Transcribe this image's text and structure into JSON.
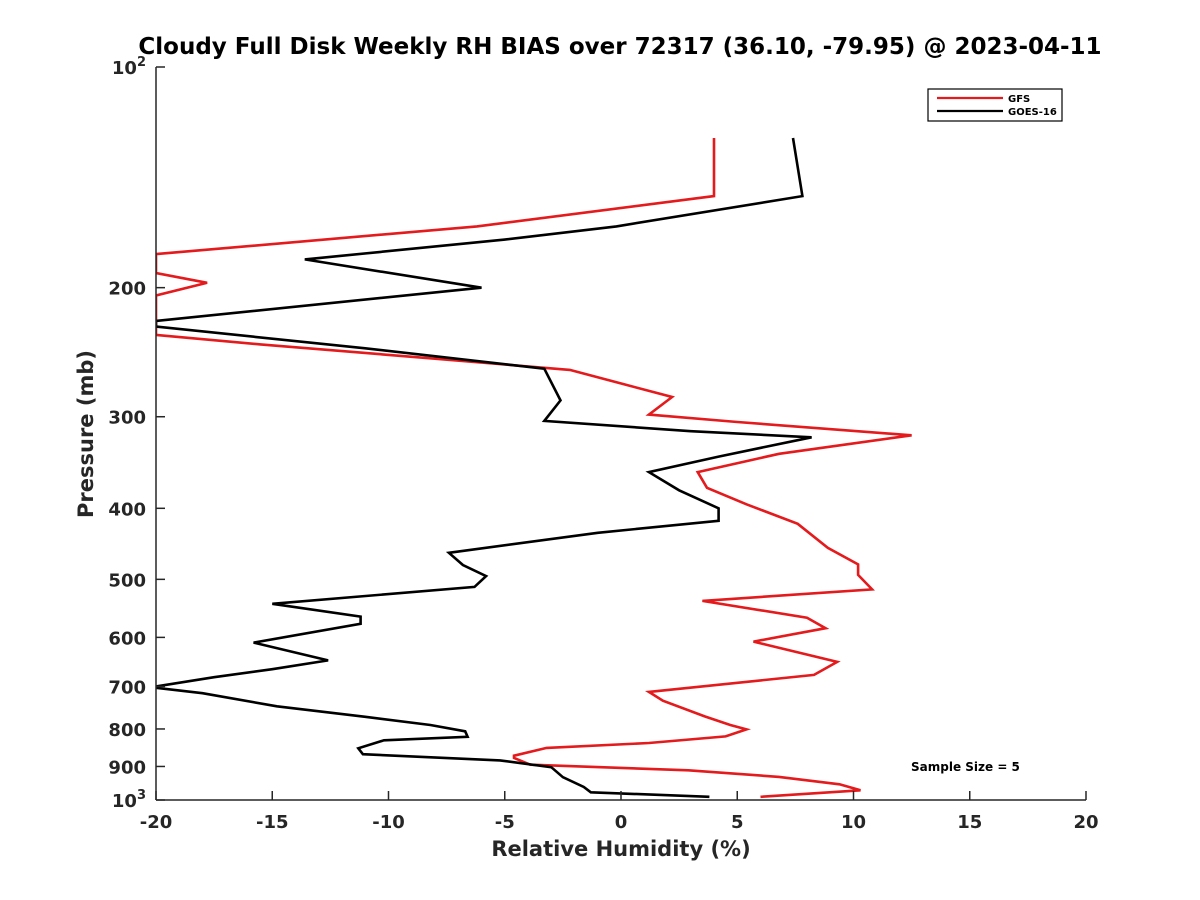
{
  "chart_data": {
    "type": "line",
    "title": "Cloudy Full Disk Weekly RH BIAS over 72317 (36.10, -79.95) @ 2023-04-11",
    "xlabel": "Relative Humidity (%)",
    "ylabel": "Pressure (mb)",
    "xlim": [
      -20,
      20
    ],
    "ylim": [
      100,
      1000
    ],
    "y_scale": "log",
    "y_reversed": true,
    "grid": false,
    "legend_position": "top-right",
    "x_ticks": [
      "-20",
      "-15",
      "-10",
      "-5",
      "0",
      "5",
      "10",
      "15",
      "20"
    ],
    "y_ticks": [
      {
        "value": 100,
        "base": "10",
        "exp": "2"
      },
      {
        "value": 200,
        "label": "200"
      },
      {
        "value": 300,
        "label": "300"
      },
      {
        "value": 400,
        "label": "400"
      },
      {
        "value": 500,
        "label": "500"
      },
      {
        "value": 600,
        "label": "600"
      },
      {
        "value": 700,
        "label": "700"
      },
      {
        "value": 800,
        "label": "800"
      },
      {
        "value": 900,
        "label": "900"
      },
      {
        "value": 1000,
        "base": "10",
        "exp": "3"
      }
    ],
    "annotation": "Sample Size = 5",
    "series": [
      {
        "name": "GFS",
        "color": "#e41a1c",
        "points": [
          [
            4.0,
            125
          ],
          [
            4.0,
            150
          ],
          [
            -6.2,
            165
          ],
          [
            -20.0,
            180
          ],
          [
            -20.0,
            191
          ],
          [
            -17.8,
            197
          ],
          [
            -20.0,
            205
          ],
          [
            -20.0,
            232
          ],
          [
            -15.5,
            239
          ],
          [
            -8.0,
            250
          ],
          [
            -2.2,
            259
          ],
          [
            2.2,
            282
          ],
          [
            1.2,
            298
          ],
          [
            5.0,
            305
          ],
          [
            12.5,
            318
          ],
          [
            6.8,
            337
          ],
          [
            3.3,
            357
          ],
          [
            3.7,
            375
          ],
          [
            5.4,
            395
          ],
          [
            7.6,
            420
          ],
          [
            8.9,
            453
          ],
          [
            10.2,
            477
          ],
          [
            10.2,
            493
          ],
          [
            10.8,
            516
          ],
          [
            3.5,
            535
          ],
          [
            8.0,
            564
          ],
          [
            8.8,
            583
          ],
          [
            5.7,
            608
          ],
          [
            9.3,
            648
          ],
          [
            8.3,
            675
          ],
          [
            1.2,
            712
          ],
          [
            1.8,
            732
          ],
          [
            3.6,
            769
          ],
          [
            4.7,
            790
          ],
          [
            5.4,
            801
          ],
          [
            4.5,
            819
          ],
          [
            1.2,
            836
          ],
          [
            -3.2,
            849
          ],
          [
            -4.6,
            870
          ],
          [
            -4.6,
            876
          ],
          [
            -3.9,
            895
          ],
          [
            2.9,
            911
          ],
          [
            6.8,
            930
          ],
          [
            9.4,
            952
          ],
          [
            10.3,
            970
          ],
          [
            6.0,
            990
          ]
        ]
      },
      {
        "name": "GOES-16",
        "color": "#000000",
        "points": [
          [
            7.4,
            125
          ],
          [
            7.8,
            150
          ],
          [
            -0.2,
            165
          ],
          [
            -5.0,
            172
          ],
          [
            -13.6,
            183
          ],
          [
            -6.0,
            200
          ],
          [
            -20.0,
            222
          ],
          [
            -20.0,
            226
          ],
          [
            -11.0,
            242
          ],
          [
            -3.3,
            258
          ],
          [
            -2.6,
            285
          ],
          [
            -3.3,
            304
          ],
          [
            3.0,
            314
          ],
          [
            8.2,
            320
          ],
          [
            4.2,
            340
          ],
          [
            1.2,
            357
          ],
          [
            2.5,
            378
          ],
          [
            4.2,
            400
          ],
          [
            4.2,
            416
          ],
          [
            -1.0,
            432
          ],
          [
            -7.4,
            460
          ],
          [
            -6.8,
            478
          ],
          [
            -5.8,
            495
          ],
          [
            -6.3,
            512
          ],
          [
            -15.0,
            540
          ],
          [
            -11.2,
            562
          ],
          [
            -11.2,
            575
          ],
          [
            -15.8,
            610
          ],
          [
            -12.6,
            645
          ],
          [
            -15.0,
            663
          ],
          [
            -17.5,
            680
          ],
          [
            -20.0,
            700
          ],
          [
            -20.0,
            703
          ],
          [
            -18.0,
            715
          ],
          [
            -14.8,
            745
          ],
          [
            -11.0,
            770
          ],
          [
            -8.2,
            790
          ],
          [
            -6.7,
            806
          ],
          [
            -6.6,
            820
          ],
          [
            -10.2,
            829
          ],
          [
            -11.3,
            850
          ],
          [
            -11.1,
            866
          ],
          [
            -5.2,
            883
          ],
          [
            -3.0,
            902
          ],
          [
            -2.5,
            931
          ],
          [
            -1.6,
            960
          ],
          [
            -1.3,
            976
          ],
          [
            3.8,
            990
          ]
        ]
      }
    ]
  }
}
